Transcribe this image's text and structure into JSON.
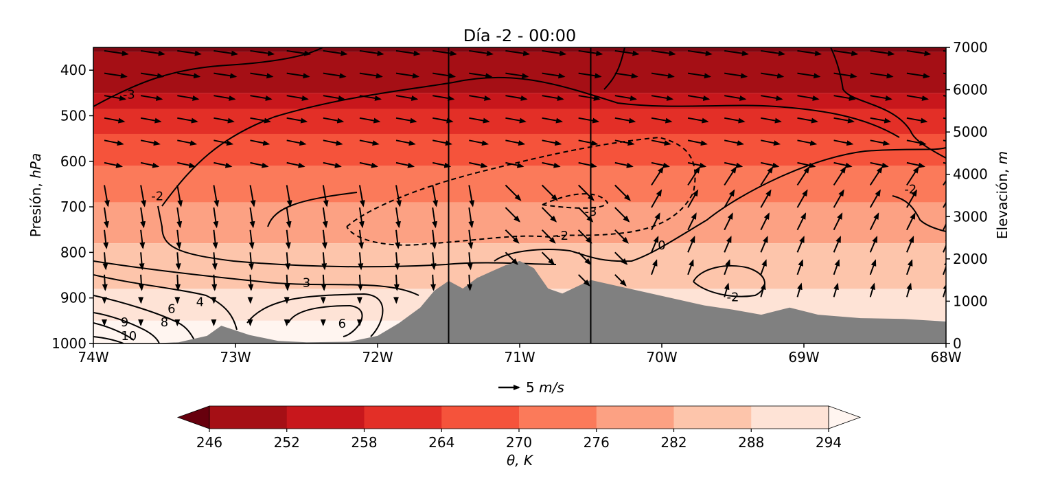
{
  "chart_data": {
    "type": "contourf",
    "title": "Día -2 - 00:00",
    "xlabel": "",
    "ylabel": {
      "prefix": "Presión, ",
      "unit": "hPa"
    },
    "y2label": {
      "prefix": "Elevación, ",
      "unit": "m"
    },
    "x_ticks": [
      "74W",
      "73W",
      "72W",
      "71W",
      "70W",
      "69W",
      "68W"
    ],
    "x_values": [
      -74,
      -73,
      -72,
      -71,
      -70,
      -69,
      -68
    ],
    "xlim": [
      -74,
      -68
    ],
    "y_ticks": [
      "400",
      "500",
      "600",
      "700",
      "800",
      "900",
      "1000"
    ],
    "y_values": [
      400,
      500,
      600,
      700,
      800,
      900,
      1000
    ],
    "ylim": [
      1000,
      350
    ],
    "y2_ticks": [
      "0",
      "1000",
      "2000",
      "3000",
      "4000",
      "5000",
      "6000",
      "7000"
    ],
    "y2_values": [
      0,
      1000,
      2000,
      3000,
      4000,
      5000,
      6000,
      7000
    ],
    "y2lim": [
      0,
      7000
    ],
    "vertical_lines_lon": [
      -71.5,
      -70.5
    ],
    "quiver_key": {
      "label": "5 ",
      "unit": "m/s"
    },
    "colorbar": {
      "label": "θ, K",
      "ticks": [
        "246",
        "252",
        "258",
        "264",
        "270",
        "276",
        "282",
        "288",
        "294"
      ],
      "levels": [
        246,
        252,
        258,
        264,
        270,
        276,
        282,
        288,
        294
      ],
      "extend": "both",
      "colors": [
        "#67000d",
        "#a50f15",
        "#c8171c",
        "#e32f27",
        "#f5533b",
        "#fb7a5a",
        "#fca183",
        "#fdc5ab",
        "#fee3d6",
        "#fff5f0"
      ]
    },
    "theta_bands": [
      {
        "p_bottom": 360,
        "color": "#7d0812"
      },
      {
        "p_bottom": 450,
        "color": "#a50f15"
      },
      {
        "p_bottom": 485,
        "color": "#c8171c"
      },
      {
        "p_bottom": 540,
        "color": "#e32f27"
      },
      {
        "p_bottom": 610,
        "color": "#f5533b"
      },
      {
        "p_bottom": 690,
        "color": "#fb7a5a"
      },
      {
        "p_bottom": 780,
        "color": "#fca183"
      },
      {
        "p_bottom": 880,
        "color": "#fdc5ab"
      },
      {
        "p_bottom": 950,
        "color": "#fee3d6"
      },
      {
        "p_bottom": 1000,
        "color": "#fff5f0"
      }
    ],
    "terrain": {
      "color": "#808080",
      "profile_lon_elev_m": [
        [
          -73.6,
          0
        ],
        [
          -73.4,
          30
        ],
        [
          -73.2,
          180
        ],
        [
          -73.1,
          420
        ],
        [
          -72.9,
          200
        ],
        [
          -72.7,
          60
        ],
        [
          -72.5,
          30
        ],
        [
          -72.2,
          40
        ],
        [
          -72.0,
          180
        ],
        [
          -71.85,
          480
        ],
        [
          -71.7,
          850
        ],
        [
          -71.6,
          1250
        ],
        [
          -71.5,
          1480
        ],
        [
          -71.4,
          1300
        ],
        [
          -71.3,
          1550
        ],
        [
          -71.2,
          1700
        ],
        [
          -71.1,
          1850
        ],
        [
          -71.0,
          1950
        ],
        [
          -70.9,
          1780
        ],
        [
          -70.8,
          1300
        ],
        [
          -70.7,
          1180
        ],
        [
          -70.5,
          1500
        ],
        [
          -70.3,
          1350
        ],
        [
          -70.1,
          1200
        ],
        [
          -69.9,
          1050
        ],
        [
          -69.7,
          900
        ],
        [
          -69.5,
          800
        ],
        [
          -69.3,
          680
        ],
        [
          -69.1,
          850
        ],
        [
          -68.9,
          680
        ],
        [
          -68.6,
          600
        ],
        [
          -68.3,
          580
        ],
        [
          -68.0,
          520
        ]
      ]
    },
    "contour_labels": [
      {
        "text": "-3",
        "lon": -73.75,
        "p": 455
      },
      {
        "text": "-2",
        "lon": -73.55,
        "p": 678
      },
      {
        "text": "-3",
        "lon": -70.5,
        "p": 712
      },
      {
        "text": "-2",
        "lon": -70.7,
        "p": 765
      },
      {
        "text": "0",
        "lon": -70.0,
        "p": 786
      },
      {
        "text": "-2",
        "lon": -68.25,
        "p": 663
      },
      {
        "text": "3",
        "lon": -72.5,
        "p": 868
      },
      {
        "text": "-2",
        "lon": -69.5,
        "p": 900
      },
      {
        "text": "6",
        "lon": -73.45,
        "p": 925
      },
      {
        "text": "4",
        "lon": -73.25,
        "p": 910
      },
      {
        "text": "8",
        "lon": -73.5,
        "p": 955
      },
      {
        "text": "6",
        "lon": -72.25,
        "p": 958
      },
      {
        "text": "9",
        "lon": -73.78,
        "p": 955
      },
      {
        "text": "10",
        "lon": -73.75,
        "p": 985
      }
    ]
  }
}
